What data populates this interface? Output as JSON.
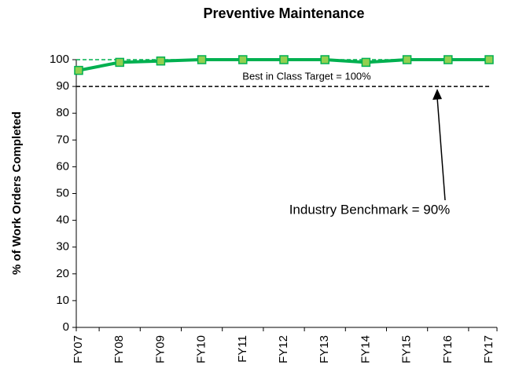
{
  "chart_data": {
    "type": "line",
    "title": "Preventive Maintenance",
    "y_label": "% of Work Orders Completed",
    "categories": [
      "FY07",
      "FY08",
      "FY09",
      "FY10",
      "FY11",
      "FY12",
      "FY13",
      "FY14",
      "FY15",
      "FY16",
      "FY17"
    ],
    "series": [
      {
        "name": "Preventive Maintenance",
        "color": "#00b050",
        "marker_fill": "#92d050",
        "values": [
          96,
          99,
          99.5,
          100,
          100,
          100,
          100,
          99,
          100,
          100,
          100
        ]
      }
    ],
    "ylim": [
      0,
      100
    ],
    "yticks": [
      0,
      10,
      20,
      30,
      40,
      50,
      60,
      70,
      80,
      90,
      100
    ],
    "reference_lines": [
      {
        "value": 100,
        "label": "Best in Class Target = 100%",
        "color": "#00b050"
      },
      {
        "value": 90,
        "label": "Industry Benchmark = 90%",
        "color": "#000000"
      }
    ]
  }
}
